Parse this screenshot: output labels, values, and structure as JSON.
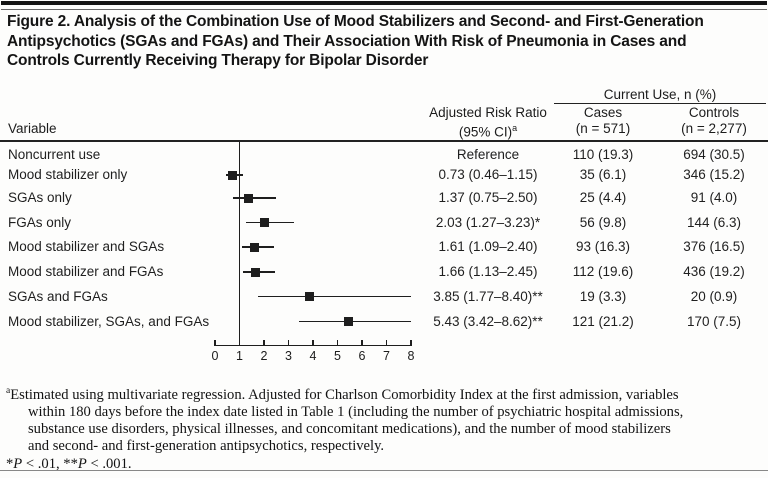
{
  "title_lines": [
    "Figure 2. Analysis of the Combination Use of Mood Stabilizers and Second- and First-Generation",
    "Antipsychotics (SGAs and FGAs) and Their Association With Risk of Pneumonia in Cases and",
    "Controls Currently Receiving Therapy for Bipolar Disorder"
  ],
  "table": {
    "variable_header": "Variable",
    "spanner": "Current Use, n (%)",
    "arr_header_line1": "Adjusted Risk Ratio",
    "arr_header_line2": "(95% CI)",
    "arr_header_sup": "a",
    "cases_header": "Cases",
    "cases_n": "(n = 571)",
    "controls_header": "Controls",
    "controls_n": "(n = 2,277)",
    "rows": [
      {
        "label": "Noncurrent use",
        "arr": "Reference",
        "cases": "110 (19.3)",
        "controls": "694 (30.5)"
      },
      {
        "label": "Mood stabilizer only",
        "arr": "0.73 (0.46–1.15)",
        "cases": "35 (6.1)",
        "controls": "346 (15.2)"
      },
      {
        "label": "SGAs only",
        "arr": "1.37 (0.75–2.50)",
        "cases": "25 (4.4)",
        "controls": "91 (4.0)"
      },
      {
        "label": "FGAs only",
        "arr": "2.03 (1.27–3.23)*",
        "cases": "56 (9.8)",
        "controls": "144 (6.3)"
      },
      {
        "label": "Mood stabilizer and SGAs",
        "arr": "1.61 (1.09–2.40)",
        "cases": "93 (16.3)",
        "controls": "376 (16.5)"
      },
      {
        "label": "Mood stabilizer and FGAs",
        "arr": "1.66 (1.13–2.45)",
        "cases": "112 (19.6)",
        "controls": "436 (19.2)"
      },
      {
        "label": "SGAs and FGAs",
        "arr": "3.85 (1.77–8.40)**",
        "cases": "19 (3.3)",
        "controls": "20 (0.9)"
      },
      {
        "label": "Mood stabilizer, SGAs, and FGAs",
        "arr": "5.43 (3.42–8.62)**",
        "cases": "121 (21.2)",
        "controls": "170 (7.5)"
      }
    ]
  },
  "chart_data": {
    "type": "scatter",
    "subtype": "forest_plot",
    "xlabel": "Adjusted Risk Ratio (95% CI)",
    "xlim": [
      0,
      8
    ],
    "x_ticks": [
      0,
      1,
      2,
      3,
      4,
      5,
      6,
      7,
      8
    ],
    "reference_line_x": 1,
    "reference_category": "Noncurrent use",
    "categories": [
      "Noncurrent use",
      "Mood stabilizer only",
      "SGAs only",
      "FGAs only",
      "Mood stabilizer and SGAs",
      "Mood stabilizer and FGAs",
      "SGAs and FGAs",
      "Mood stabilizer, SGAs, and FGAs"
    ],
    "points": [
      {
        "category": "Mood stabilizer only",
        "estimate": 0.73,
        "ci_low": 0.46,
        "ci_high": 1.15
      },
      {
        "category": "SGAs only",
        "estimate": 1.37,
        "ci_low": 0.75,
        "ci_high": 2.5
      },
      {
        "category": "FGAs only",
        "estimate": 2.03,
        "ci_low": 1.27,
        "ci_high": 3.23
      },
      {
        "category": "Mood stabilizer and SGAs",
        "estimate": 1.61,
        "ci_low": 1.09,
        "ci_high": 2.4
      },
      {
        "category": "Mood stabilizer and FGAs",
        "estimate": 1.66,
        "ci_low": 1.13,
        "ci_high": 2.45
      },
      {
        "category": "SGAs and FGAs",
        "estimate": 3.85,
        "ci_low": 1.77,
        "ci_high": 8.4
      },
      {
        "category": "Mood stabilizer, SGAs, and FGAs",
        "estimate": 5.43,
        "ci_low": 3.42,
        "ci_high": 8.62
      }
    ]
  },
  "footnote": {
    "sup": "a",
    "lines": [
      "Estimated using multivariate regression. Adjusted for Charlson Comorbidity Index at the first admission, variables",
      "within 180 days before the index date listed in Table 1 (including the number of psychiatric hospital admissions,",
      "substance use disorders, physical illnesses, and concomitant medications), and the number of mood stabilizers",
      "and second- and first-generation antipsychotics, respectively."
    ],
    "pvalue_segments": [
      {
        "t": "*"
      },
      {
        "t": "P",
        "i": true
      },
      {
        "t": " < .01, **"
      },
      {
        "t": "P",
        "i": true
      },
      {
        "t": " < .001."
      }
    ]
  },
  "colors": {
    "text": "#1c1c1c",
    "lines": "#1e1e1e",
    "top_bar": "#141414",
    "bottom_rule": "#888888",
    "background": "#fdfdfc"
  }
}
